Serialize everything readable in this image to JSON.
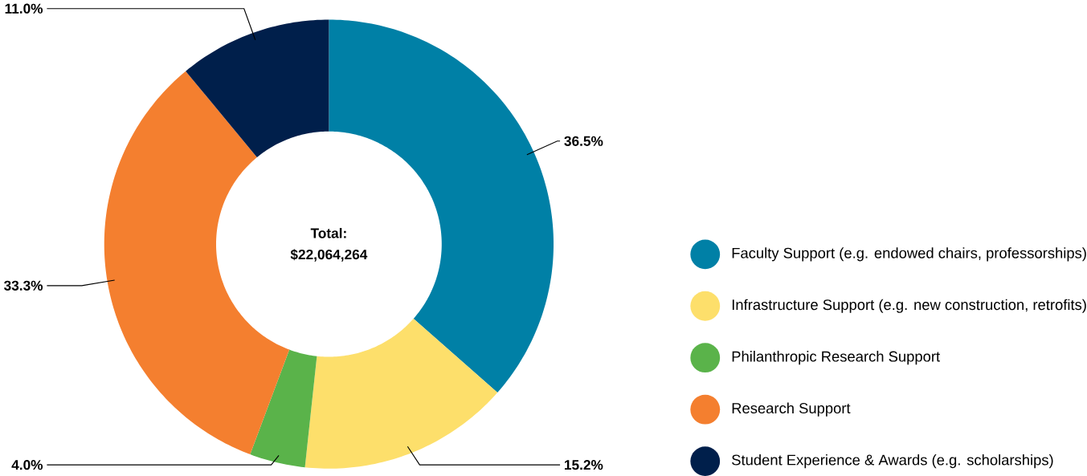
{
  "chart_data": {
    "type": "donut",
    "categories": [
      "Faculty Support (e.g. endowed chairs, professorships)",
      "Infrastructure Support (e.g. new construction, retrofits)",
      "Philanthropic Research Support",
      "Research Support",
      "Student Experience & Awards (e.g. scholarships)"
    ],
    "values": [
      36.5,
      15.2,
      4.0,
      33.3,
      11.0
    ],
    "colors": [
      "#0080a6",
      "#fddf6b",
      "#5ab34a",
      "#f47f2f",
      "#001f4b"
    ],
    "value_labels": [
      "36.5%",
      "15.2%",
      "4.0%",
      "33.3%",
      "11.0%"
    ],
    "annotations": [
      "Total:",
      "$22,064,264"
    ],
    "legend": "right"
  }
}
